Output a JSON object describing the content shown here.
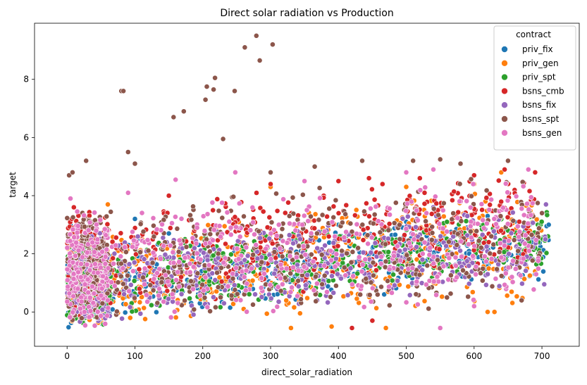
{
  "chart_data": {
    "type": "scatter",
    "title": "Direct solar radiation vs Production",
    "xlabel": "direct_solar_radiation",
    "ylabel": "target",
    "xlim": [
      -48,
      755
    ],
    "ylim": [
      -1.18,
      9.93
    ],
    "xticks": [
      0,
      100,
      200,
      300,
      400,
      500,
      600,
      700
    ],
    "xtick_labels": [
      "0",
      "100",
      "200",
      "300",
      "400",
      "500",
      "600",
      "700"
    ],
    "yticks": [
      0,
      2,
      4,
      6,
      8
    ],
    "ytick_labels": [
      "0",
      "2",
      "4",
      "6",
      "8"
    ],
    "grid": false,
    "legend": {
      "title": "contract",
      "placement": "top-right"
    },
    "series": [
      {
        "name": "priv_fix",
        "color": "#1f77b4",
        "band": {
          "x_max": 710,
          "y_min_start": -0.6,
          "y_min_end": 1.1,
          "y_max_start": 2.4,
          "y_max_end": 3.4
        },
        "points": [
          [
            5,
            3.0
          ],
          [
            100,
            3.2
          ],
          [
            150,
            2.7
          ],
          [
            400,
            3.0
          ],
          [
            500,
            3.1
          ],
          [
            620,
            3.3
          ],
          [
            660,
            3.1
          ],
          [
            700,
            3.4
          ],
          [
            710,
            3.0
          ],
          [
            690,
            1.3
          ]
        ]
      },
      {
        "name": "priv_gen",
        "color": "#ff7f0e",
        "band": {
          "x_max": 700,
          "y_min_start": -0.6,
          "y_min_end": 0.1,
          "y_max_start": 2.6,
          "y_max_end": 4.9
        },
        "points": [
          [
            60,
            3.7
          ],
          [
            300,
            4.3
          ],
          [
            500,
            4.3
          ],
          [
            600,
            4.4
          ],
          [
            640,
            4.8
          ],
          [
            630,
            0.0
          ],
          [
            620,
            0.0
          ],
          [
            690,
            1.4
          ],
          [
            330,
            -0.55
          ],
          [
            390,
            -0.5
          ],
          [
            470,
            -0.55
          ]
        ]
      },
      {
        "name": "priv_spt",
        "color": "#2ca02c",
        "band": {
          "x_max": 710,
          "y_min_start": -0.6,
          "y_min_end": 1.4,
          "y_max_start": 2.5,
          "y_max_end": 3.5
        },
        "points": [
          [
            709,
            2.6
          ],
          [
            690,
            2.2
          ],
          [
            650,
            2.8
          ],
          [
            560,
            3.1
          ],
          [
            450,
            2.6
          ]
        ]
      },
      {
        "name": "bsns_cmb",
        "color": "#d62728",
        "band": {
          "x_max": 690,
          "y_min_start": -0.4,
          "y_min_end": 1.7,
          "y_max_start": 3.6,
          "y_max_end": 4.9
        },
        "points": [
          [
            10,
            3.6
          ],
          [
            150,
            4.0
          ],
          [
            300,
            4.4
          ],
          [
            400,
            4.5
          ],
          [
            445,
            4.6
          ],
          [
            465,
            4.4
          ],
          [
            520,
            4.6
          ],
          [
            600,
            4.7
          ],
          [
            645,
            4.9
          ],
          [
            690,
            4.8
          ],
          [
            420,
            -0.55
          ],
          [
            450,
            -0.3
          ]
        ]
      },
      {
        "name": "bsns_fix",
        "color": "#9467bd",
        "band": {
          "x_max": 705,
          "y_min_start": -0.6,
          "y_min_end": 0.9,
          "y_max_start": 2.7,
          "y_max_end": 3.7
        },
        "points": [
          [
            706,
            3.7
          ],
          [
            680,
            3.5
          ],
          [
            590,
            3.3
          ],
          [
            540,
            3.6
          ]
        ]
      },
      {
        "name": "bsns_spt",
        "color": "#8c564b",
        "band": {
          "x_max": 700,
          "y_min_start": -0.6,
          "y_min_end": 0.3,
          "y_max_start": 3.7,
          "y_max_end": 4.9
        },
        "points": [
          [
            3,
            4.7
          ],
          [
            8,
            4.8
          ],
          [
            28,
            5.2
          ],
          [
            90,
            5.5
          ],
          [
            100,
            5.1
          ],
          [
            80,
            7.6
          ],
          [
            83,
            7.6
          ],
          [
            157,
            6.7
          ],
          [
            172,
            6.9
          ],
          [
            204,
            7.3
          ],
          [
            206,
            7.75
          ],
          [
            216,
            7.65
          ],
          [
            218,
            8.05
          ],
          [
            230,
            5.95
          ],
          [
            247,
            7.6
          ],
          [
            262,
            9.1
          ],
          [
            279,
            9.5
          ],
          [
            284,
            8.65
          ],
          [
            303,
            9.2
          ],
          [
            300,
            4.8
          ],
          [
            365,
            5.0
          ],
          [
            435,
            5.2
          ],
          [
            510,
            5.2
          ],
          [
            550,
            5.25
          ],
          [
            580,
            5.1
          ],
          [
            650,
            5.2
          ],
          [
            700,
            3.4
          ],
          [
            670,
            0.4
          ],
          [
            560,
            0.5
          ]
        ]
      },
      {
        "name": "bsns_gen",
        "color": "#e377c2",
        "band": {
          "x_max": 695,
          "y_min_start": -0.6,
          "y_min_end": 0.4,
          "y_max_start": 3.5,
          "y_max_end": 4.9
        },
        "points": [
          [
            5,
            3.9
          ],
          [
            90,
            4.1
          ],
          [
            160,
            4.55
          ],
          [
            248,
            4.8
          ],
          [
            350,
            4.5
          ],
          [
            500,
            4.8
          ],
          [
            540,
            4.9
          ],
          [
            680,
            4.9
          ],
          [
            550,
            -0.55
          ],
          [
            600,
            0.2
          ]
        ]
      }
    ]
  }
}
